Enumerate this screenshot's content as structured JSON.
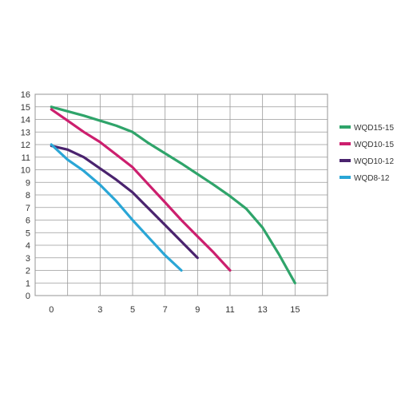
{
  "chart_data": {
    "type": "line",
    "title": "",
    "xlabel": "",
    "ylabel": "",
    "xlim": [
      -1,
      17
    ],
    "ylim": [
      0,
      16
    ],
    "x_tick_values": [
      0,
      3,
      5,
      7,
      9,
      11,
      13,
      15
    ],
    "x_tick_labels": [
      "0",
      "3",
      "5",
      "7",
      "9",
      "11",
      "13",
      "15"
    ],
    "y_ticks": [
      0,
      1,
      2,
      3,
      4,
      5,
      6,
      7,
      8,
      9,
      10,
      11,
      12,
      13,
      14,
      15,
      16
    ],
    "grid": true,
    "legend_position": "right",
    "series": [
      {
        "name": "WQD15-15",
        "color": "#2fa46a",
        "points": [
          [
            0,
            15
          ],
          [
            2,
            14.3
          ],
          [
            4,
            13.5
          ],
          [
            5,
            13
          ],
          [
            6,
            12.1
          ],
          [
            8,
            10.5
          ],
          [
            10,
            8.8
          ],
          [
            11,
            7.9
          ],
          [
            12,
            6.9
          ],
          [
            13,
            5.4
          ],
          [
            14,
            3.3
          ],
          [
            15,
            1
          ]
        ]
      },
      {
        "name": "WQD10-15",
        "color": "#cc1f6e",
        "points": [
          [
            0,
            14.8
          ],
          [
            1,
            13.9
          ],
          [
            2,
            13
          ],
          [
            3,
            12.2
          ],
          [
            4,
            11.2
          ],
          [
            5,
            10.2
          ],
          [
            6,
            8.8
          ],
          [
            7,
            7.4
          ],
          [
            8,
            6
          ],
          [
            9,
            4.7
          ],
          [
            10,
            3.4
          ],
          [
            11,
            2
          ]
        ]
      },
      {
        "name": "WQD10-12",
        "color": "#4a236e",
        "points": [
          [
            0,
            11.9
          ],
          [
            1,
            11.6
          ],
          [
            2,
            11
          ],
          [
            3,
            10.1
          ],
          [
            4,
            9.2
          ],
          [
            5,
            8.2
          ],
          [
            6,
            6.9
          ],
          [
            7,
            5.6
          ],
          [
            8,
            4.3
          ],
          [
            9,
            3
          ]
        ]
      },
      {
        "name": "WQD8-12",
        "color": "#2aa6d6",
        "points": [
          [
            0,
            12
          ],
          [
            1,
            10.8
          ],
          [
            2,
            9.9
          ],
          [
            3,
            8.8
          ],
          [
            4,
            7.5
          ],
          [
            5,
            6
          ],
          [
            6,
            4.6
          ],
          [
            7,
            3.2
          ],
          [
            8,
            2
          ]
        ]
      }
    ]
  }
}
